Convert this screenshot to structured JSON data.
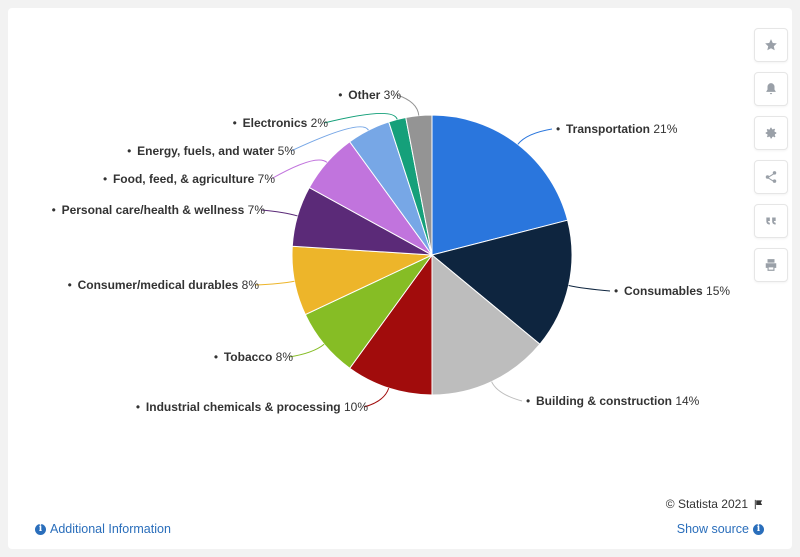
{
  "toolbar": {
    "buttons": [
      {
        "name": "bookmark-button",
        "icon": "star-icon"
      },
      {
        "name": "notification-button",
        "icon": "bell-icon"
      },
      {
        "name": "settings-button",
        "icon": "gear-icon"
      },
      {
        "name": "share-button",
        "icon": "share-icon"
      },
      {
        "name": "cite-button",
        "icon": "quote-icon"
      },
      {
        "name": "print-button",
        "icon": "print-icon"
      }
    ]
  },
  "footer": {
    "copyright": "© Statista 2021",
    "additional_info": "Additional Information",
    "show_source": "Show source"
  },
  "chart_data": {
    "type": "pie",
    "title": "",
    "slices": [
      {
        "label": "Transportation",
        "value": 21,
        "display": "21%",
        "color": "#2a76dd"
      },
      {
        "label": "Consumables",
        "value": 15,
        "display": "15%",
        "color": "#0e253f"
      },
      {
        "label": "Building & construction",
        "value": 14,
        "display": "14%",
        "color": "#bdbdbd"
      },
      {
        "label": "Industrial chemicals & processing",
        "value": 10,
        "display": "10%",
        "color": "#a10c0c"
      },
      {
        "label": "Tobacco",
        "value": 8,
        "display": "8%",
        "color": "#86bd25"
      },
      {
        "label": "Consumer/medical durables",
        "value": 8,
        "display": "8%",
        "color": "#edb52a"
      },
      {
        "label": "Personal care/health & wellness",
        "value": 7,
        "display": "7%",
        "color": "#5b2a78"
      },
      {
        "label": "Food, feed, & agriculture",
        "value": 7,
        "display": "7%",
        "color": "#c174dd"
      },
      {
        "label": "Energy, fuels, and water",
        "value": 5,
        "display": "5%",
        "color": "#77a7e6"
      },
      {
        "label": "Electronics",
        "value": 2,
        "display": "2%",
        "color": "#15a07a"
      },
      {
        "label": "Other",
        "value": 3,
        "display": "3%",
        "color": "#949494"
      }
    ]
  }
}
